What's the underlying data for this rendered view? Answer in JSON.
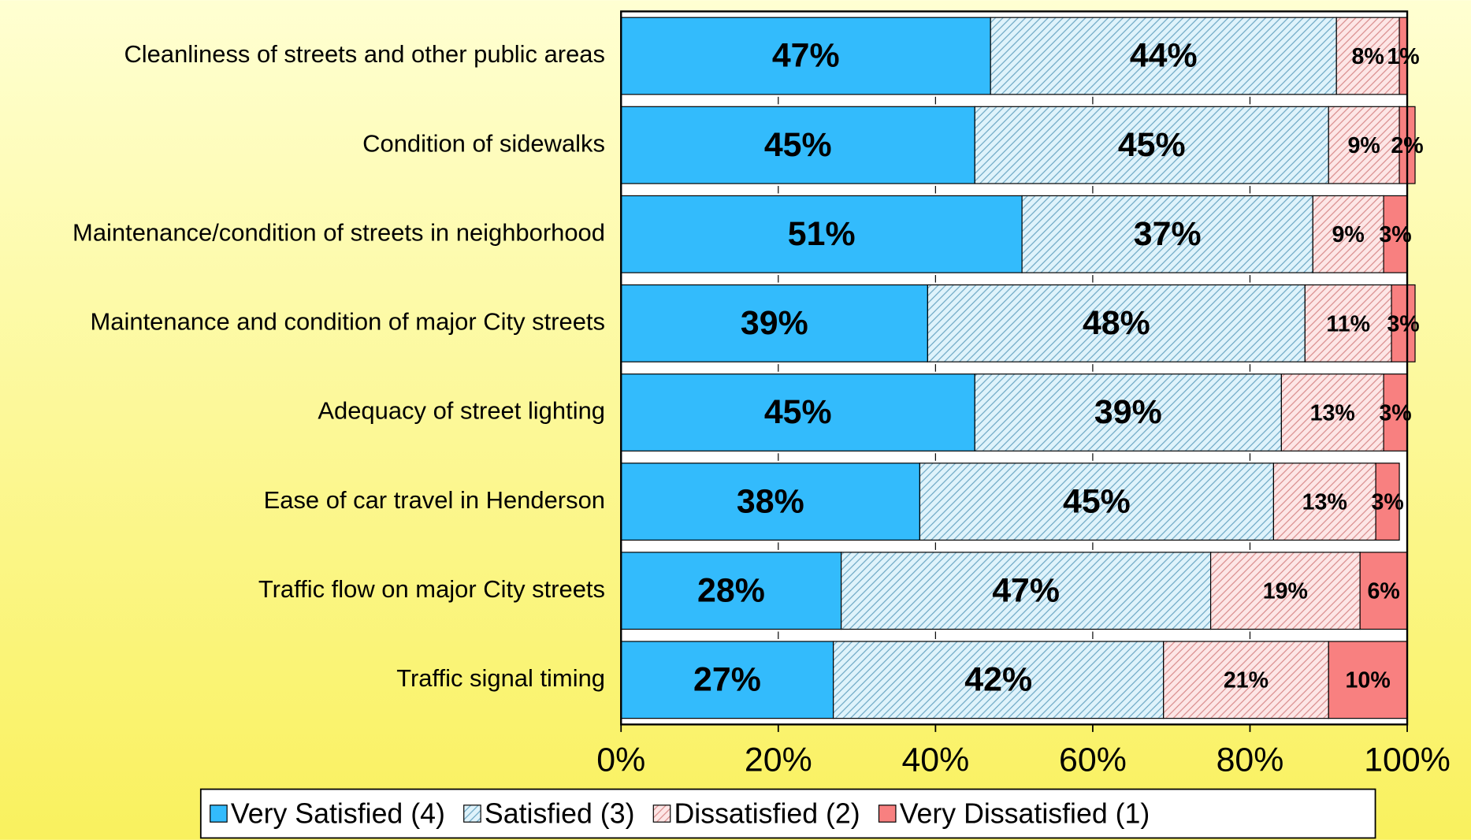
{
  "chart_data": {
    "type": "stacked-bar-horizontal",
    "categories": [
      "Cleanliness of streets and other public areas",
      "Condition of sidewalks",
      "Maintenance/condition of streets in neighborhood",
      "Maintenance and condition of major City streets",
      "Adequacy of street lighting",
      "Ease of car travel in Henderson",
      "Traffic flow on major City streets",
      "Traffic signal timing"
    ],
    "series": [
      {
        "name": "Very Satisfied (4)",
        "color": "#33bbfc",
        "hatch": false,
        "values": [
          47,
          45,
          51,
          39,
          45,
          38,
          28,
          27
        ],
        "value_labels": [
          "47%",
          "45%",
          "51%",
          "39%",
          "45%",
          "38%",
          "28%",
          "27%"
        ]
      },
      {
        "name": "Satisfied (3)",
        "color": "#dff3fb",
        "hatch": true,
        "values": [
          44,
          45,
          37,
          48,
          39,
          45,
          47,
          42
        ],
        "value_labels": [
          "44%",
          "45%",
          "37%",
          "48%",
          "39%",
          "45%",
          "47%",
          "42%"
        ]
      },
      {
        "name": "Dissatisfied (2)",
        "color": "#fde6e6",
        "hatch": true,
        "values": [
          8,
          9,
          9,
          11,
          13,
          13,
          19,
          21
        ],
        "value_labels": [
          "8%",
          "9%",
          "9%",
          "11%",
          "13%",
          "13%",
          "19%",
          "21%"
        ]
      },
      {
        "name": "Very Dissatisfied (1)",
        "color": "#f88080",
        "hatch": false,
        "values": [
          1,
          2,
          3,
          3,
          3,
          3,
          6,
          10
        ],
        "value_labels": [
          "1%",
          "2%",
          "3%",
          "3%",
          "3%",
          "3%",
          "6%",
          "10%"
        ]
      }
    ],
    "xlim": [
      0,
      100
    ],
    "xticks": [
      {
        "value": 0,
        "label": "0%"
      },
      {
        "value": 20,
        "label": "20%"
      },
      {
        "value": 40,
        "label": "40%"
      },
      {
        "value": 60,
        "label": "60%"
      },
      {
        "value": 80,
        "label": "80%"
      },
      {
        "value": 100,
        "label": "100%"
      }
    ],
    "legend": "bottom"
  }
}
